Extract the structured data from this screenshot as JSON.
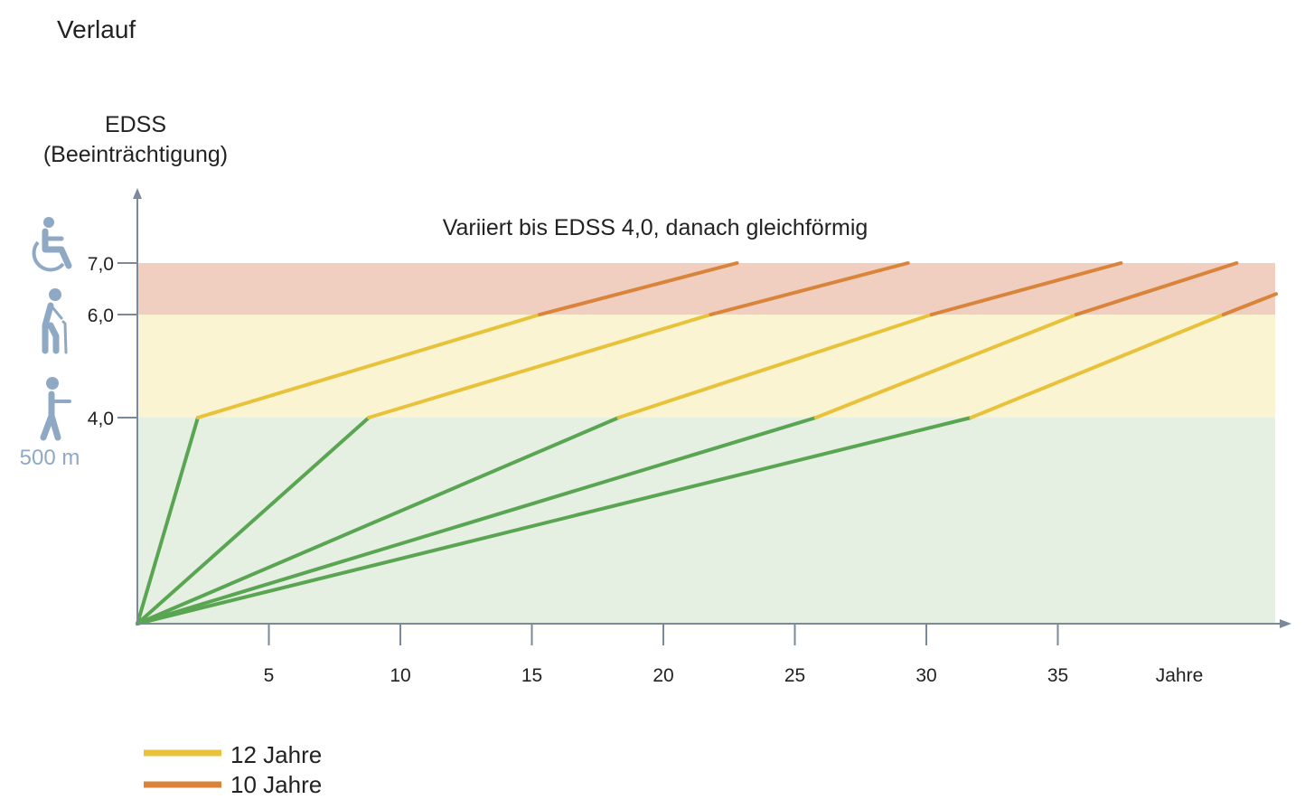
{
  "chart_data": {
    "type": "line",
    "title": "Verlauf",
    "subtitle": "Variiert bis EDSS 4,0, danach gleichförmig",
    "ylabel_line1": "EDSS",
    "ylabel_line2": "(Beeinträchtigung)",
    "xlabel": "Jahre",
    "xlim": [
      0,
      43.3
    ],
    "ylim": [
      0,
      7.0
    ],
    "x_ticks": [
      {
        "value": 5,
        "label": "5"
      },
      {
        "value": 10,
        "label": "10"
      },
      {
        "value": 15,
        "label": "15"
      },
      {
        "value": 20,
        "label": "20"
      },
      {
        "value": 25,
        "label": "25"
      },
      {
        "value": 30,
        "label": "30"
      },
      {
        "value": 35,
        "label": "35"
      }
    ],
    "y_ticks": [
      {
        "value": 4.0,
        "label": "4,0",
        "icon": "walking-person-icon",
        "note": "500 m"
      },
      {
        "value": 6.0,
        "label": "6,0",
        "icon": "person-with-cane-icon"
      },
      {
        "value": 7.0,
        "label": "7,0",
        "icon": "wheelchair-icon"
      }
    ],
    "bands": [
      {
        "from": 0,
        "to": 4.0,
        "color": "#e5f0e3"
      },
      {
        "from": 4.0,
        "to": 6.0,
        "color": "#fbf4d2"
      },
      {
        "from": 6.0,
        "to": 7.0,
        "color": "#f0cfc0"
      }
    ],
    "phase_colors": {
      "early": "#5aa552",
      "middle": "#e8c23a",
      "late": "#d9843a"
    },
    "series": [
      {
        "name": "course-1",
        "points": [
          [
            0,
            0
          ],
          [
            2.3,
            4.0
          ],
          [
            15.3,
            6.0
          ],
          [
            22.8,
            7.0
          ]
        ]
      },
      {
        "name": "course-2",
        "points": [
          [
            0,
            0
          ],
          [
            8.8,
            4.0
          ],
          [
            21.8,
            6.0
          ],
          [
            29.3,
            7.0
          ]
        ]
      },
      {
        "name": "course-3",
        "points": [
          [
            0,
            0
          ],
          [
            18.3,
            4.0
          ],
          [
            30.2,
            6.0
          ],
          [
            37.4,
            7.0
          ]
        ]
      },
      {
        "name": "course-4",
        "points": [
          [
            0,
            0
          ],
          [
            25.8,
            4.0
          ],
          [
            35.7,
            6.0
          ],
          [
            41.8,
            7.0
          ]
        ]
      },
      {
        "name": "course-5",
        "points": [
          [
            0,
            0
          ],
          [
            31.7,
            4.0
          ],
          [
            41.3,
            6.0
          ],
          [
            43.3,
            6.4
          ]
        ]
      }
    ],
    "legend": [
      {
        "label": "12 Jahre",
        "color": "#e8c23a"
      },
      {
        "label": "10 Jahre",
        "color": "#d9843a"
      }
    ],
    "axis_color": "#7a8a9a",
    "icon_color": "#8fa9c4"
  }
}
